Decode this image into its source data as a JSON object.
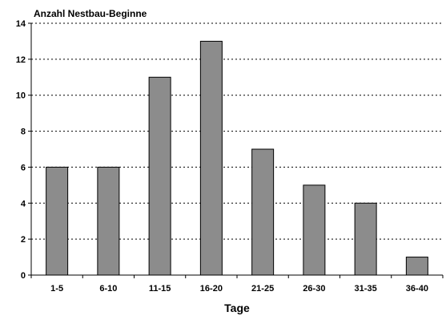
{
  "chart_data": {
    "type": "bar",
    "title": "Anzahl Nestbau-Beginne",
    "xlabel": "Tage",
    "ylabel": "",
    "categories": [
      "1-5",
      "6-10",
      "11-15",
      "16-20",
      "21-25",
      "26-30",
      "31-35",
      "36-40"
    ],
    "values": [
      6,
      6,
      11,
      13,
      7,
      5,
      4,
      1
    ],
    "ylim": [
      0,
      14
    ],
    "yticks": [
      0,
      2,
      4,
      6,
      8,
      10,
      12,
      14
    ],
    "grid": "horizontal-dotted",
    "legend": "none",
    "bar_color": "#8c8c8c"
  }
}
